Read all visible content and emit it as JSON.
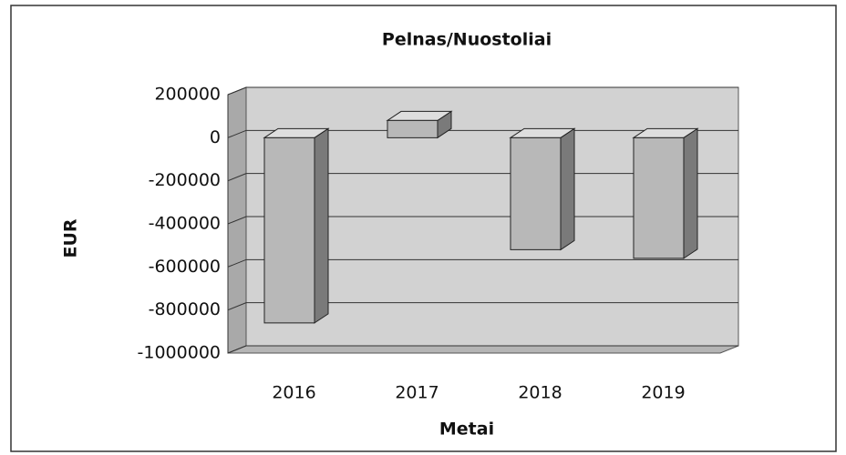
{
  "chart_data": {
    "type": "bar",
    "title": "Pelnas/Nuostoliai",
    "x_label": "Metai",
    "y_label": "EUR",
    "categories": [
      "2016",
      "2017",
      "2018",
      "2019"
    ],
    "values": [
      -860000,
      80000,
      -520000,
      -560000
    ],
    "color": "#b8b8b8",
    "ylim": [
      -1000000,
      200000
    ],
    "yticks": [
      -1000000,
      -800000,
      -600000,
      -400000,
      -200000,
      0,
      200000
    ],
    "grid": true
  }
}
